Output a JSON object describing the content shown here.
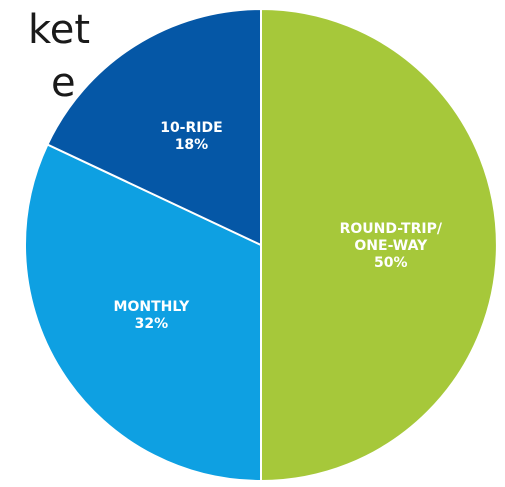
{
  "title_fragment": {
    "line1": "ket",
    "line2": "e"
  },
  "chart_data": {
    "type": "pie",
    "slices": [
      {
        "label_lines": [
          "ROUND-TRIP/",
          "ONE-WAY"
        ],
        "value": 50,
        "value_label": "50%",
        "color": "#a6c83a"
      },
      {
        "label_lines": [
          "MONTHLY"
        ],
        "value": 32,
        "value_label": "32%",
        "color": "#0ea0e2"
      },
      {
        "label_lines": [
          "10-RIDE"
        ],
        "value": 18,
        "value_label": "18%",
        "color": "#0557a6"
      }
    ],
    "start_angle_deg": 0,
    "direction": "clockwise",
    "slice_border_color": "#ffffff"
  }
}
